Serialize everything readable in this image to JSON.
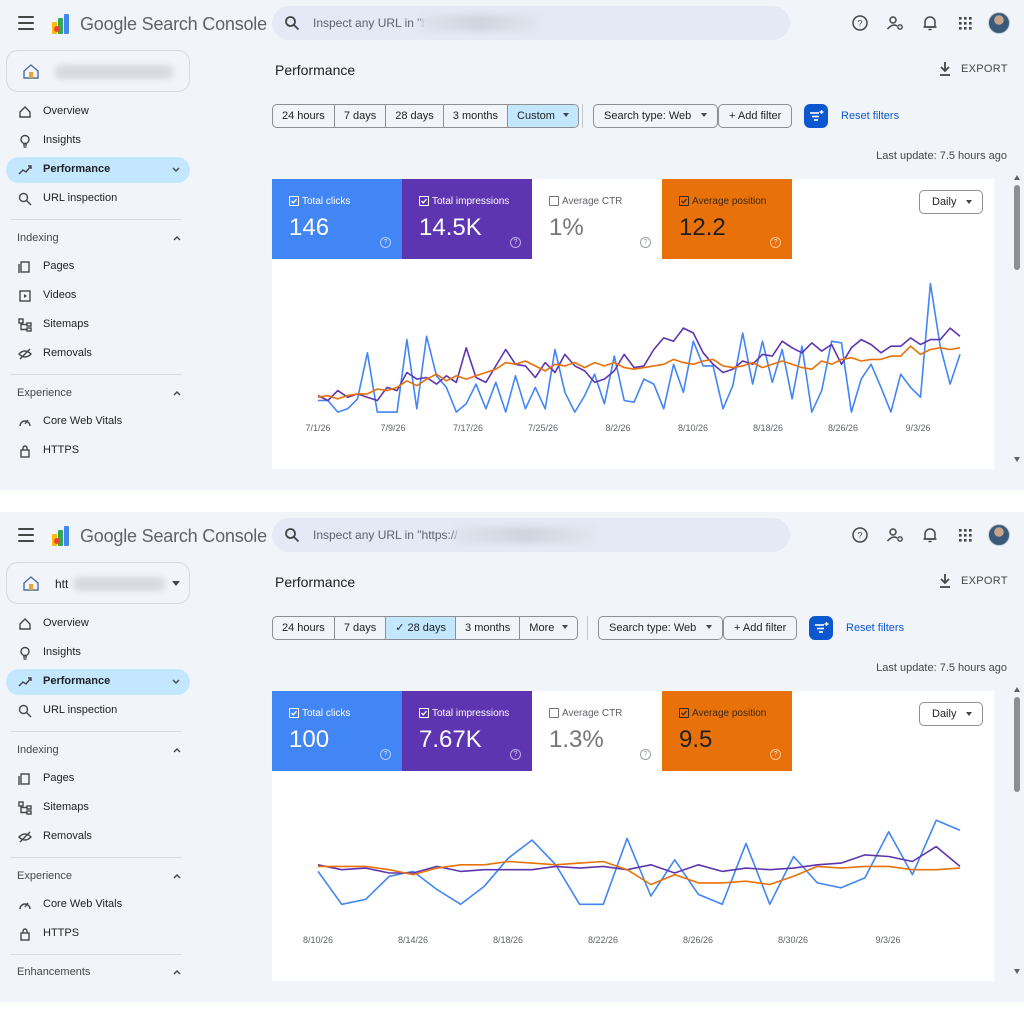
{
  "colors": {
    "clicks": "#4285f4",
    "impressions": "#5e35b1",
    "ctr": "#ffffff",
    "position": "#e8710a",
    "accent": "#0b57d0",
    "active_nav": "#c2e7ff"
  },
  "icons": {
    "menu": "menu-icon",
    "logo": "search-console-logo-icon",
    "search": "search-icon",
    "help": "help-icon",
    "admin": "manage-accounts-icon",
    "notifications": "bell-icon",
    "apps": "apps-grid-icon",
    "export": "download-icon"
  },
  "panels": [
    {
      "app_title": "Google Search Console",
      "search_placeholder": "Inspect any URL in \"h",
      "property_label": "",
      "nav": [
        {
          "label": "Overview"
        },
        {
          "label": "Insights"
        },
        {
          "label": "Performance"
        },
        {
          "label": "URL inspection"
        }
      ],
      "indexing_title": "Indexing",
      "indexing": [
        {
          "label": "Pages"
        },
        {
          "label": "Videos"
        },
        {
          "label": "Sitemaps"
        },
        {
          "label": "Removals"
        }
      ],
      "experience_title": "Experience",
      "experience": [
        {
          "label": "Core Web Vitals"
        },
        {
          "label": "HTTPS"
        }
      ],
      "enhancements_title": "",
      "page_title": "Performance",
      "export_label": "EXPORT",
      "date_ranges": [
        {
          "label": "24 hours"
        },
        {
          "label": "7 days"
        },
        {
          "label": "28 days"
        },
        {
          "label": "3 months"
        },
        {
          "label": "Custom"
        }
      ],
      "search_type": "Search type: Web",
      "add_filter": "+ Add filter",
      "reset_filters": "Reset filters",
      "last_update": "Last update: 7.5 hours ago",
      "metrics": [
        {
          "label": "Total clicks",
          "value": "146",
          "checked": true
        },
        {
          "label": "Total impressions",
          "value": "14.5K",
          "checked": true
        },
        {
          "label": "Average CTR",
          "value": "1%",
          "checked": false
        },
        {
          "label": "Average position",
          "value": "12.2",
          "checked": true
        }
      ],
      "granularity": "Daily",
      "chart_data": {
        "type": "line",
        "x_ticks": [
          "7/1/26",
          "7/9/26",
          "7/17/26",
          "7/25/26",
          "8/2/26",
          "8/10/26",
          "8/18/26",
          "8/26/26",
          "9/3/26"
        ],
        "series": [
          {
            "key": "clicks",
            "values": [
              1,
              1,
              0.3,
              0.5,
              1.1,
              3.9,
              0.3,
              0.3,
              0.3,
              4.7,
              0.5,
              4.9,
              2.5,
              1.8,
              0.3,
              0.8,
              2.0,
              0.5,
              2.1,
              0.3,
              2.5,
              0.5,
              1.8,
              0.5,
              4.1,
              1.5,
              0.3,
              1.3,
              2.6,
              0.8,
              3.7,
              1.0,
              0.9,
              2.3,
              2.0,
              0.5,
              3.2,
              1.5,
              4.6,
              3.1,
              3.1,
              0.5,
              1.9,
              5.1,
              2.0,
              4.6,
              2.1,
              4.1,
              1.1,
              4.3,
              0.3,
              1.6,
              4.6,
              4.5,
              0.3,
              2.3,
              3.2,
              1.8,
              0.3,
              2.6,
              1.8,
              1.2,
              8.1,
              4.3,
              2.0,
              3.8
            ]
          },
          {
            "key": "impressions",
            "values": [
              1.3,
              1,
              1.6,
              1.2,
              1.4,
              1.2,
              1.0,
              1.8,
              1.6,
              2.7,
              2.3,
              2.4,
              2.0,
              2.5,
              2.1,
              4.2,
              2.4,
              2.1,
              3.1,
              4.1,
              3.2,
              3.1,
              2.4,
              3.3,
              2.7,
              3.8,
              3.1,
              2.8,
              2.1,
              2.3,
              2.8,
              3.8,
              3.0,
              3.1,
              4.1,
              4.8,
              4.6,
              5.4,
              5.1,
              3.9,
              3.2,
              2.7,
              2.9,
              3.4,
              3.2,
              3.8,
              3.7,
              4.6,
              4.2,
              3.9,
              4.5,
              4.0,
              4.4,
              3.2,
              4.2,
              4.7,
              4.4,
              3.9,
              4.3,
              4.3,
              4.8,
              4.4,
              4.7,
              4.7,
              5.4,
              4.9
            ]
          },
          {
            "key": "position",
            "values": [
              1.2,
              1.3,
              1.1,
              1.3,
              1.4,
              1.4,
              1.7,
              1.6,
              1.8,
              2.2,
              1.9,
              2.3,
              2.6,
              2.2,
              2.5,
              2.3,
              2.5,
              2.7,
              2.9,
              3.3,
              3.2,
              3.4,
              3.1,
              2.8,
              3.2,
              3.1,
              3.3,
              3.0,
              3.3,
              3.1,
              3.3,
              3.0,
              2.9,
              3.0,
              3.1,
              3.2,
              3.5,
              3.3,
              3.2,
              3.4,
              3.5,
              3.1,
              3.0,
              3.1,
              3.3,
              3.0,
              3.2,
              3.4,
              3.2,
              3.0,
              2.9,
              3.4,
              3.2,
              3.5,
              3.6,
              3.4,
              3.5,
              3.5,
              3.7,
              3.7,
              4.3,
              3.8,
              4.1,
              4.2,
              4.1,
              4.2
            ]
          }
        ]
      }
    },
    {
      "app_title": "Google Search Console",
      "search_placeholder": "Inspect any URL in \"https://",
      "property_label": "htt",
      "nav": [
        {
          "label": "Overview"
        },
        {
          "label": "Insights"
        },
        {
          "label": "Performance"
        },
        {
          "label": "URL inspection"
        }
      ],
      "indexing_title": "Indexing",
      "indexing": [
        {
          "label": "Pages"
        },
        {
          "label": "Sitemaps"
        },
        {
          "label": "Removals"
        }
      ],
      "experience_title": "Experience",
      "experience": [
        {
          "label": "Core Web Vitals"
        },
        {
          "label": "HTTPS"
        }
      ],
      "enhancements_title": "Enhancements",
      "page_title": "Performance",
      "export_label": "EXPORT",
      "date_ranges": [
        {
          "label": "24 hours"
        },
        {
          "label": "7 days"
        },
        {
          "label": "✓ 28 days"
        },
        {
          "label": "3 months"
        },
        {
          "label": "More"
        }
      ],
      "search_type": "Search type: Web",
      "add_filter": "+ Add filter",
      "reset_filters": "Reset filters",
      "last_update": "Last update: 7.5 hours ago",
      "metrics": [
        {
          "label": "Total clicks",
          "value": "100",
          "checked": true
        },
        {
          "label": "Total impressions",
          "value": "7.67K",
          "checked": true
        },
        {
          "label": "Average CTR",
          "value": "1.3%",
          "checked": false
        },
        {
          "label": "Average position",
          "value": "9.5",
          "checked": true
        }
      ],
      "granularity": "Daily",
      "chart_data": {
        "type": "line",
        "x_ticks": [
          "8/10/26",
          "8/14/26",
          "8/18/26",
          "8/22/26",
          "8/26/26",
          "8/30/26",
          "9/3/26"
        ],
        "series": [
          {
            "key": "clicks",
            "values": [
              3.5,
              1.5,
              1.8,
              3.2,
              3.5,
              2.4,
              1.5,
              2.6,
              4.3,
              5.4,
              3.9,
              1.5,
              1.5,
              5.5,
              2.0,
              4.2,
              2.1,
              1.5,
              5.2,
              1.5,
              4.4,
              2.8,
              2.5,
              3.1,
              5.9,
              3.3,
              6.6,
              6.0
            ]
          },
          {
            "key": "impressions",
            "values": [
              3.9,
              3.6,
              3.7,
              3.4,
              3.4,
              3.8,
              3.5,
              3.6,
              3.6,
              3.6,
              3.8,
              3.7,
              3.8,
              3.6,
              3.9,
              3.4,
              3.9,
              3.5,
              3.7,
              3.6,
              3.7,
              3.9,
              4.0,
              4.5,
              4.4,
              4.1,
              5.0,
              3.8
            ]
          },
          {
            "key": "position",
            "values": [
              3.8,
              3.8,
              3.8,
              3.6,
              3.3,
              3.7,
              3.9,
              3.9,
              4.1,
              4.0,
              3.9,
              4.0,
              4.1,
              3.6,
              2.7,
              3.3,
              2.8,
              2.8,
              2.9,
              2.7,
              3.2,
              3.8,
              3.7,
              3.8,
              3.8,
              3.6,
              3.6,
              3.7
            ]
          }
        ]
      }
    }
  ]
}
